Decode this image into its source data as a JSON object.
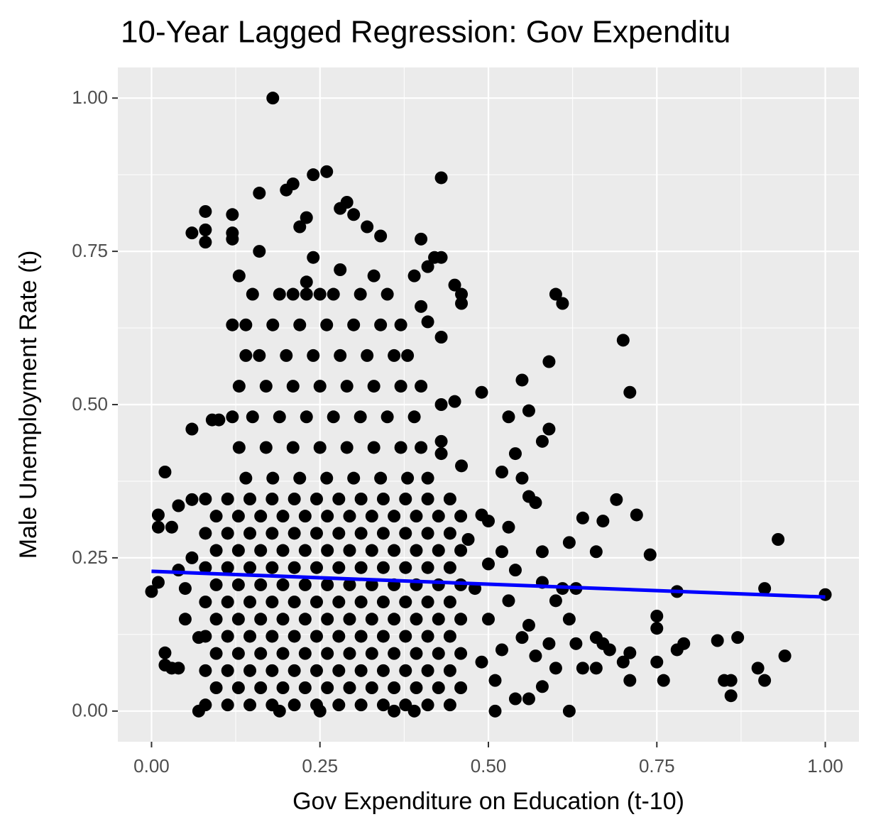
{
  "chart_data": {
    "type": "scatter",
    "title": "10-Year Lagged Regression: Gov Expenditu",
    "x_label": "Gov Expenditure on Education (t-10)",
    "y_label": "Male Unemployment Rate (t)",
    "color": "#000000",
    "xlim": [
      -0.05,
      1.05
    ],
    "ylim": [
      -0.05,
      1.05
    ],
    "xticks": [
      {
        "value": 0,
        "label": "0.00"
      },
      {
        "value": 0.25,
        "label": "0.25"
      },
      {
        "value": 0.5,
        "label": "0.50"
      },
      {
        "value": 0.75,
        "label": "0.75"
      },
      {
        "value": 1,
        "label": "1.00"
      }
    ],
    "yticks": [
      {
        "value": 0,
        "label": "0.00"
      },
      {
        "value": 0.25,
        "label": "0.25"
      },
      {
        "value": 0.5,
        "label": "0.50"
      },
      {
        "value": 0.75,
        "label": "0.75"
      },
      {
        "value": 1,
        "label": "1.00"
      }
    ],
    "minor_xticks": [
      0.125,
      0.375,
      0.625,
      0.875
    ],
    "minor_yticks": [
      0.125,
      0.375,
      0.625,
      0.875
    ],
    "grid": true,
    "regression": {
      "x": [
        0,
        1
      ],
      "values": [
        0.228,
        0.186
      ],
      "color": "#0000ff"
    },
    "x": [
      0.18,
      0.26,
      0.24,
      0.43,
      0.16,
      0.2,
      0.21,
      0.08,
      0.08,
      0.06,
      0.08,
      0.12,
      0.12,
      0.12,
      0.22,
      0.23,
      0.28,
      0.29,
      0.3,
      0.32,
      0.34,
      0.4,
      0.42,
      0.43,
      0.41,
      0.39,
      0.45,
      0.46,
      0.46,
      0.4,
      0.41,
      0.43,
      0.6,
      0.61,
      0.7,
      0.71,
      0.59,
      0.49,
      0.55,
      0.53,
      0.56,
      0.59,
      0.58,
      0.43,
      0.45,
      0.43,
      0.43,
      0.46,
      0.54,
      0.52,
      0.06,
      0.09,
      0.1,
      0.02,
      0.01,
      0.01,
      0.03,
      0.04,
      0.06,
      0,
      0.01,
      0.02,
      0.02,
      0.03,
      0.04,
      0.07,
      0.19,
      0.25,
      0.36,
      0.39,
      0.51,
      0.62,
      0.54,
      0.56,
      0.69,
      0.72,
      0.74,
      0.64,
      0.67,
      0.62,
      0.66,
      0.93,
      1,
      0.91,
      0.78,
      0.75,
      0.75,
      0.79,
      0.78,
      0.84,
      0.87,
      0.94,
      0.9,
      0.91,
      0.85,
      0.86,
      0.86,
      0.76,
      0.75,
      0.71,
      0.71,
      0.7,
      0.68,
      0.67,
      0.66,
      0.64,
      0.66,
      0.63,
      0.6,
      0.61,
      0.6,
      0.62,
      0.63,
      0.58,
      0.58,
      0.56,
      0.57,
      0.55,
      0.49,
      0.5,
      0.52,
      0.53,
      0.59,
      0.58,
      0.57,
      0.56,
      0.48,
      0.5,
      0.52,
      0.47,
      0.5,
      0.53,
      0.55,
      0.51,
      0.49,
      0.54,
      0.05,
      0.06,
      0.05,
      0.07,
      0.04,
      0.08,
      0.113,
      0.146,
      0.179,
      0.212,
      0.245,
      0.278,
      0.311,
      0.344,
      0.377,
      0.41,
      0.443,
      0.096,
      0.129,
      0.162,
      0.195,
      0.228,
      0.261,
      0.294,
      0.327,
      0.36,
      0.393,
      0.426,
      0.459,
      0.08,
      0.113,
      0.146,
      0.179,
      0.212,
      0.245,
      0.278,
      0.311,
      0.344,
      0.377,
      0.41,
      0.443,
      0.096,
      0.129,
      0.162,
      0.195,
      0.228,
      0.261,
      0.294,
      0.327,
      0.36,
      0.393,
      0.426,
      0.459,
      0.08,
      0.113,
      0.146,
      0.179,
      0.212,
      0.245,
      0.278,
      0.311,
      0.344,
      0.377,
      0.41,
      0.443,
      0.096,
      0.129,
      0.162,
      0.195,
      0.228,
      0.261,
      0.294,
      0.327,
      0.36,
      0.393,
      0.426,
      0.459,
      0.08,
      0.113,
      0.146,
      0.179,
      0.212,
      0.245,
      0.278,
      0.311,
      0.344,
      0.377,
      0.41,
      0.443,
      0.096,
      0.129,
      0.162,
      0.195,
      0.228,
      0.261,
      0.294,
      0.327,
      0.36,
      0.393,
      0.426,
      0.459,
      0.08,
      0.113,
      0.146,
      0.179,
      0.212,
      0.245,
      0.278,
      0.311,
      0.344,
      0.377,
      0.41,
      0.443,
      0.096,
      0.129,
      0.162,
      0.195,
      0.228,
      0.261,
      0.294,
      0.327,
      0.36,
      0.393,
      0.426,
      0.459,
      0.08,
      0.113,
      0.146,
      0.179,
      0.212,
      0.245,
      0.278,
      0.311,
      0.344,
      0.377,
      0.41,
      0.443,
      0.096,
      0.129,
      0.162,
      0.195,
      0.228,
      0.261,
      0.294,
      0.327,
      0.36,
      0.393,
      0.426,
      0.459,
      0.08,
      0.113,
      0.146,
      0.179,
      0.212,
      0.245,
      0.278,
      0.311,
      0.344,
      0.377,
      0.41,
      0.443,
      0.14,
      0.18,
      0.22,
      0.26,
      0.3,
      0.34,
      0.38,
      0.41,
      0.13,
      0.17,
      0.21,
      0.25,
      0.29,
      0.33,
      0.37,
      0.4,
      0.15,
      0.19,
      0.23,
      0.27,
      0.31,
      0.35,
      0.39,
      0.12,
      0.13,
      0.17,
      0.21,
      0.25,
      0.29,
      0.33,
      0.37,
      0.4,
      0.16,
      0.2,
      0.24,
      0.28,
      0.32,
      0.36,
      0.14,
      0.38,
      0.14,
      0.18,
      0.22,
      0.26,
      0.3,
      0.34,
      0.37,
      0.12,
      0.15,
      0.19,
      0.23,
      0.27,
      0.31,
      0.35,
      0.25,
      0.21,
      0.13,
      0.16,
      0.24,
      0.28,
      0.33,
      0.23
    ],
    "values": [
      1.0,
      0.88,
      0.875,
      0.87,
      0.845,
      0.85,
      0.86,
      0.815,
      0.785,
      0.78,
      0.765,
      0.81,
      0.78,
      0.77,
      0.79,
      0.805,
      0.82,
      0.83,
      0.81,
      0.79,
      0.775,
      0.77,
      0.74,
      0.74,
      0.725,
      0.71,
      0.695,
      0.68,
      0.665,
      0.66,
      0.635,
      0.61,
      0.68,
      0.665,
      0.605,
      0.52,
      0.57,
      0.52,
      0.54,
      0.48,
      0.49,
      0.46,
      0.44,
      0.5,
      0.505,
      0.44,
      0.42,
      0.4,
      0.42,
      0.39,
      0.46,
      0.475,
      0.475,
      0.39,
      0.32,
      0.3,
      0.3,
      0.335,
      0.345,
      0.195,
      0.21,
      0.095,
      0.075,
      0.07,
      0.07,
      0,
      0,
      0,
      0,
      0,
      0,
      0,
      0.02,
      0.02,
      0.345,
      0.32,
      0.255,
      0.315,
      0.31,
      0.275,
      0.26,
      0.28,
      0.19,
      0.2,
      0.195,
      0.155,
      0.135,
      0.11,
      0.1,
      0.115,
      0.12,
      0.09,
      0.07,
      0.05,
      0.05,
      0.05,
      0.025,
      0.05,
      0.08,
      0.095,
      0.05,
      0.08,
      0.1,
      0.11,
      0.12,
      0.07,
      0.07,
      0.11,
      0.07,
      0.2,
      0.18,
      0.15,
      0.2,
      0.26,
      0.21,
      0.35,
      0.34,
      0.38,
      0.32,
      0.31,
      0.26,
      0.3,
      0.11,
      0.04,
      0.09,
      0.14,
      0.2,
      0.15,
      0.1,
      0.28,
      0.24,
      0.18,
      0.12,
      0.05,
      0.08,
      0.23,
      0.15,
      0.25,
      0.2,
      0.12,
      0.23,
      0.01,
      0.01,
      0.01,
      0.01,
      0.01,
      0.01,
      0.01,
      0.01,
      0.01,
      0.01,
      0.01,
      0.01,
      0.038,
      0.038,
      0.038,
      0.038,
      0.038,
      0.038,
      0.038,
      0.038,
      0.038,
      0.038,
      0.038,
      0.038,
      0.066,
      0.066,
      0.066,
      0.066,
      0.066,
      0.066,
      0.066,
      0.066,
      0.066,
      0.066,
      0.066,
      0.066,
      0.094,
      0.094,
      0.094,
      0.094,
      0.094,
      0.094,
      0.094,
      0.094,
      0.094,
      0.094,
      0.094,
      0.094,
      0.122,
      0.122,
      0.122,
      0.122,
      0.122,
      0.122,
      0.122,
      0.122,
      0.122,
      0.122,
      0.122,
      0.122,
      0.15,
      0.15,
      0.15,
      0.15,
      0.15,
      0.15,
      0.15,
      0.15,
      0.15,
      0.15,
      0.15,
      0.15,
      0.178,
      0.178,
      0.178,
      0.178,
      0.178,
      0.178,
      0.178,
      0.178,
      0.178,
      0.178,
      0.178,
      0.178,
      0.206,
      0.206,
      0.206,
      0.206,
      0.206,
      0.206,
      0.206,
      0.206,
      0.206,
      0.206,
      0.206,
      0.206,
      0.234,
      0.234,
      0.234,
      0.234,
      0.234,
      0.234,
      0.234,
      0.234,
      0.234,
      0.234,
      0.234,
      0.234,
      0.262,
      0.262,
      0.262,
      0.262,
      0.262,
      0.262,
      0.262,
      0.262,
      0.262,
      0.262,
      0.262,
      0.262,
      0.29,
      0.29,
      0.29,
      0.29,
      0.29,
      0.29,
      0.29,
      0.29,
      0.29,
      0.29,
      0.29,
      0.29,
      0.318,
      0.318,
      0.318,
      0.318,
      0.318,
      0.318,
      0.318,
      0.318,
      0.318,
      0.318,
      0.318,
      0.318,
      0.346,
      0.346,
      0.346,
      0.346,
      0.346,
      0.346,
      0.346,
      0.346,
      0.346,
      0.346,
      0.346,
      0.346,
      0.38,
      0.38,
      0.38,
      0.38,
      0.38,
      0.38,
      0.38,
      0.38,
      0.43,
      0.43,
      0.43,
      0.43,
      0.43,
      0.43,
      0.43,
      0.43,
      0.48,
      0.48,
      0.48,
      0.48,
      0.48,
      0.48,
      0.48,
      0.48,
      0.53,
      0.53,
      0.53,
      0.53,
      0.53,
      0.53,
      0.53,
      0.53,
      0.58,
      0.58,
      0.58,
      0.58,
      0.58,
      0.58,
      0.58,
      0.58,
      0.63,
      0.63,
      0.63,
      0.63,
      0.63,
      0.63,
      0.63,
      0.63,
      0.68,
      0.68,
      0.68,
      0.68,
      0.68,
      0.68,
      0.68,
      0.68,
      0.71,
      0.75,
      0.74,
      0.72,
      0.71,
      0.7
    ]
  }
}
